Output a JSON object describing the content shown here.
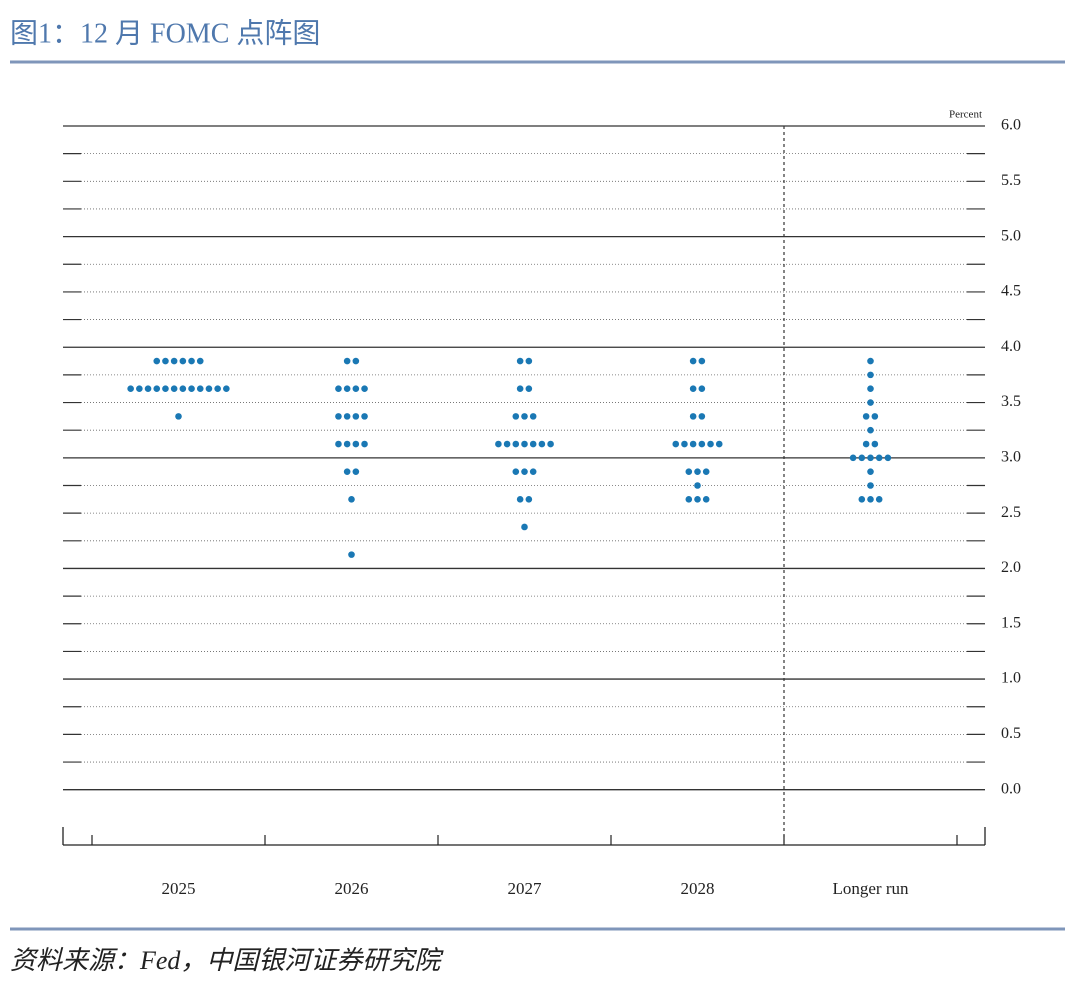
{
  "title": "图1：12 月 FOMC 点阵图",
  "source": "资料来源：Fed，中国银河证券研究院",
  "chart_data": {
    "type": "dot",
    "y_unit_label": "Percent",
    "categories": [
      "2025",
      "2026",
      "2027",
      "2028",
      "Longer run"
    ],
    "values": [
      [
        3.875,
        3.875,
        3.875,
        3.875,
        3.875,
        3.875,
        3.625,
        3.625,
        3.625,
        3.625,
        3.625,
        3.625,
        3.625,
        3.625,
        3.625,
        3.625,
        3.625,
        3.625,
        3.375
      ],
      [
        3.875,
        3.875,
        3.625,
        3.625,
        3.625,
        3.625,
        3.375,
        3.375,
        3.375,
        3.375,
        3.125,
        3.125,
        3.125,
        3.125,
        2.875,
        2.875,
        2.625,
        2.125
      ],
      [
        3.875,
        3.875,
        3.625,
        3.625,
        3.375,
        3.375,
        3.375,
        3.125,
        3.125,
        3.125,
        3.125,
        3.125,
        3.125,
        3.125,
        2.875,
        2.875,
        2.875,
        2.625,
        2.625,
        2.375
      ],
      [
        3.875,
        3.875,
        3.625,
        3.625,
        3.375,
        3.375,
        3.125,
        3.125,
        3.125,
        3.125,
        3.125,
        3.125,
        2.875,
        2.875,
        2.875,
        2.75,
        2.625,
        2.625,
        2.625
      ],
      [
        3.875,
        3.75,
        3.625,
        3.5,
        3.375,
        3.375,
        3.25,
        3.125,
        3.125,
        3,
        3,
        3,
        3,
        3,
        2.875,
        2.75,
        2.625,
        2.625,
        2.625
      ]
    ],
    "color": "#1a78b4",
    "ylim": [
      -0.5,
      6
    ],
    "yticks": [
      {
        "value": 0,
        "label": "0.0"
      },
      0.5,
      {
        "value": 1,
        "label": "1.0"
      },
      1.5,
      {
        "value": 2,
        "label": "2.0"
      },
      2.5,
      {
        "value": 3,
        "label": "3.0"
      },
      3.5,
      {
        "value": 4,
        "label": "4.0"
      },
      4.5,
      {
        "value": 5,
        "label": "5.0"
      },
      5.5,
      {
        "value": 6,
        "label": "6.0"
      }
    ],
    "minor_yticks": [
      0.25,
      0.75,
      1.25,
      1.75,
      2.25,
      2.75,
      3.25,
      3.75,
      4.25,
      4.75,
      5.25,
      5.75
    ]
  }
}
